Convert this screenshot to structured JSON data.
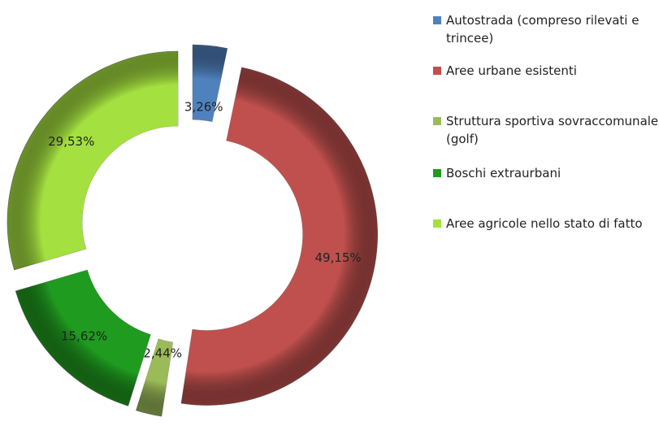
{
  "chart_data": {
    "type": "pie",
    "categories": [
      "Autostrada (compreso rilevati e trincee)",
      "Aree urbane esistenti",
      "Struttura sportiva sovraccomunale (golf)",
      "Boschi extraurbani",
      "Aree agricole nello stato di fatto"
    ],
    "values": [
      3.26,
      49.15,
      2.44,
      15.62,
      29.53
    ],
    "value_labels": [
      "3,26%",
      "49,15%",
      "2,44%",
      "15,62%",
      "29,53%"
    ],
    "colors": [
      "#4f81bd",
      "#c0504d",
      "#9bbb59",
      "#1f9b1f",
      "#a4e03f"
    ]
  }
}
